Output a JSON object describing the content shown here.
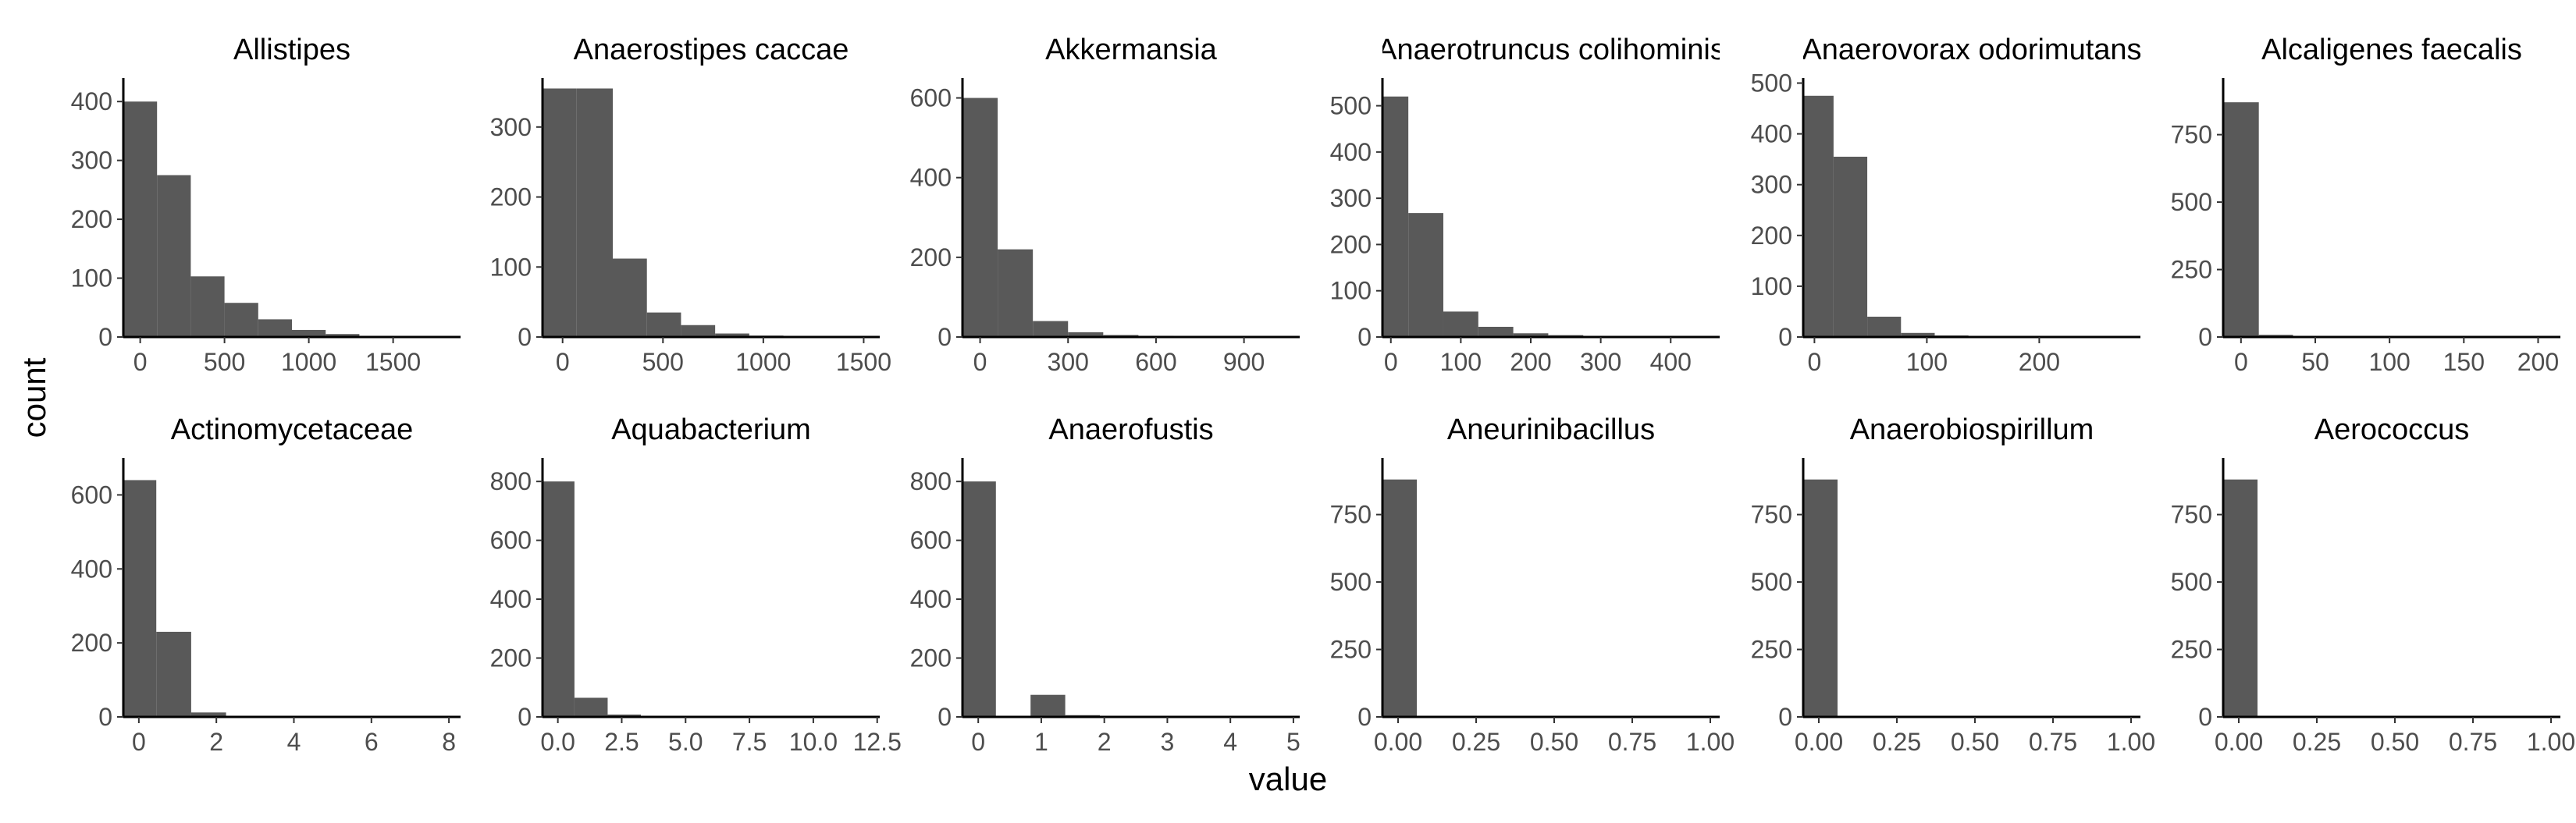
{
  "figure": {
    "xlabel": "value",
    "ylabel": "count",
    "bar_color": "#595959",
    "axis_color": "#000000",
    "tick_label_color": "#4d4d4d",
    "background": "#ffffff"
  },
  "chart_data": [
    {
      "type": "bar",
      "title": "Allistipes",
      "xlim": [
        -100,
        1900
      ],
      "ylim": [
        0,
        440
      ],
      "xticks": [
        {
          "v": 0,
          "label": "0"
        },
        {
          "v": 500,
          "label": "500"
        },
        {
          "v": 1000,
          "label": "1000"
        },
        {
          "v": 1500,
          "label": "1500"
        }
      ],
      "yticks": [
        {
          "v": 0,
          "label": "0"
        },
        {
          "v": 100,
          "label": "100"
        },
        {
          "v": 200,
          "label": "200"
        },
        {
          "v": 300,
          "label": "300"
        },
        {
          "v": 400,
          "label": "400"
        }
      ],
      "bins": [
        [
          -100,
          100,
          400
        ],
        [
          100,
          300,
          275
        ],
        [
          300,
          500,
          103
        ],
        [
          500,
          700,
          58
        ],
        [
          700,
          900,
          30
        ],
        [
          900,
          1100,
          12
        ],
        [
          1100,
          1300,
          5
        ],
        [
          1300,
          1500,
          2
        ],
        [
          1500,
          1700,
          1
        ],
        [
          1700,
          1900,
          1
        ]
      ]
    },
    {
      "type": "bar",
      "title": "Anaerostipes caccae",
      "xlim": [
        -100,
        1580
      ],
      "ylim": [
        0,
        370
      ],
      "xticks": [
        {
          "v": 0,
          "label": "0"
        },
        {
          "v": 500,
          "label": "500"
        },
        {
          "v": 1000,
          "label": "1000"
        },
        {
          "v": 1500,
          "label": "1500"
        }
      ],
      "yticks": [
        {
          "v": 0,
          "label": "0"
        },
        {
          "v": 100,
          "label": "100"
        },
        {
          "v": 200,
          "label": "200"
        },
        {
          "v": 300,
          "label": "300"
        }
      ],
      "bins": [
        [
          -100,
          70,
          355
        ],
        [
          70,
          250,
          355
        ],
        [
          250,
          420,
          112
        ],
        [
          420,
          590,
          35
        ],
        [
          590,
          760,
          17
        ],
        [
          760,
          930,
          5
        ],
        [
          930,
          1100,
          2
        ],
        [
          1100,
          1270,
          1
        ],
        [
          1270,
          1440,
          1
        ],
        [
          1440,
          1580,
          1
        ]
      ]
    },
    {
      "type": "bar",
      "title": "Akkermansia",
      "xlim": [
        -60,
        1090
      ],
      "ylim": [
        0,
        650
      ],
      "xticks": [
        {
          "v": 0,
          "label": "0"
        },
        {
          "v": 300,
          "label": "300"
        },
        {
          "v": 600,
          "label": "600"
        },
        {
          "v": 900,
          "label": "900"
        }
      ],
      "yticks": [
        {
          "v": 0,
          "label": "0"
        },
        {
          "v": 200,
          "label": "200"
        },
        {
          "v": 400,
          "label": "400"
        },
        {
          "v": 600,
          "label": "600"
        }
      ],
      "bins": [
        [
          -60,
          60,
          600
        ],
        [
          60,
          180,
          220
        ],
        [
          180,
          300,
          40
        ],
        [
          300,
          420,
          12
        ],
        [
          420,
          540,
          5
        ],
        [
          540,
          660,
          3
        ],
        [
          660,
          780,
          2
        ],
        [
          780,
          900,
          1
        ],
        [
          900,
          1020,
          1
        ],
        [
          1020,
          1090,
          1
        ]
      ]
    },
    {
      "type": "bar",
      "title": "Anaerotruncus colihominis",
      "xlim": [
        -12,
        470
      ],
      "ylim": [
        0,
        560
      ],
      "xticks": [
        {
          "v": 0,
          "label": "0"
        },
        {
          "v": 100,
          "label": "100"
        },
        {
          "v": 200,
          "label": "200"
        },
        {
          "v": 300,
          "label": "300"
        },
        {
          "v": 400,
          "label": "400"
        }
      ],
      "yticks": [
        {
          "v": 0,
          "label": "0"
        },
        {
          "v": 100,
          "label": "100"
        },
        {
          "v": 200,
          "label": "200"
        },
        {
          "v": 300,
          "label": "300"
        },
        {
          "v": 400,
          "label": "400"
        },
        {
          "v": 500,
          "label": "500"
        }
      ],
      "bins": [
        [
          -12,
          25,
          520
        ],
        [
          25,
          75,
          268
        ],
        [
          75,
          125,
          55
        ],
        [
          125,
          175,
          22
        ],
        [
          175,
          225,
          8
        ],
        [
          225,
          275,
          4
        ],
        [
          275,
          325,
          2
        ],
        [
          325,
          375,
          1
        ],
        [
          375,
          425,
          1
        ],
        [
          425,
          470,
          1
        ]
      ]
    },
    {
      "type": "bar",
      "title": "Anaerovorax odorimutans",
      "xlim": [
        -10,
        290
      ],
      "ylim": [
        0,
        510
      ],
      "xticks": [
        {
          "v": 0,
          "label": "0"
        },
        {
          "v": 100,
          "label": "100"
        },
        {
          "v": 200,
          "label": "200"
        }
      ],
      "yticks": [
        {
          "v": 0,
          "label": "0"
        },
        {
          "v": 100,
          "label": "100"
        },
        {
          "v": 200,
          "label": "200"
        },
        {
          "v": 300,
          "label": "300"
        },
        {
          "v": 400,
          "label": "400"
        },
        {
          "v": 500,
          "label": "500"
        }
      ],
      "bins": [
        [
          -10,
          17,
          475
        ],
        [
          17,
          47,
          355
        ],
        [
          47,
          77,
          40
        ],
        [
          77,
          107,
          8
        ],
        [
          107,
          137,
          3
        ],
        [
          137,
          167,
          2
        ],
        [
          167,
          197,
          1
        ],
        [
          197,
          227,
          1
        ],
        [
          227,
          257,
          1
        ],
        [
          257,
          290,
          1
        ]
      ]
    },
    {
      "type": "bar",
      "title": "Alcaligenes faecalis",
      "xlim": [
        -12,
        215
      ],
      "ylim": [
        0,
        960
      ],
      "xticks": [
        {
          "v": 0,
          "label": "0"
        },
        {
          "v": 50,
          "label": "50"
        },
        {
          "v": 100,
          "label": "100"
        },
        {
          "v": 150,
          "label": "150"
        },
        {
          "v": 200,
          "label": "200"
        }
      ],
      "yticks": [
        {
          "v": 0,
          "label": "0"
        },
        {
          "v": 250,
          "label": "250"
        },
        {
          "v": 500,
          "label": "500"
        },
        {
          "v": 750,
          "label": "750"
        }
      ],
      "bins": [
        [
          -12,
          12,
          870
        ],
        [
          12,
          35,
          8
        ],
        [
          35,
          58,
          3
        ],
        [
          58,
          81,
          1
        ],
        [
          81,
          104,
          1
        ],
        [
          104,
          127,
          1
        ],
        [
          127,
          150,
          1
        ],
        [
          150,
          173,
          1
        ],
        [
          173,
          196,
          1
        ],
        [
          196,
          215,
          1
        ]
      ]
    },
    {
      "type": "bar",
      "title": "Actinomycetaceae",
      "xlim": [
        -0.4,
        8.3
      ],
      "ylim": [
        0,
        700
      ],
      "xticks": [
        {
          "v": 0,
          "label": "0"
        },
        {
          "v": 2,
          "label": "2"
        },
        {
          "v": 4,
          "label": "4"
        },
        {
          "v": 6,
          "label": "6"
        },
        {
          "v": 8,
          "label": "8"
        }
      ],
      "yticks": [
        {
          "v": 0,
          "label": "0"
        },
        {
          "v": 200,
          "label": "200"
        },
        {
          "v": 400,
          "label": "400"
        },
        {
          "v": 600,
          "label": "600"
        }
      ],
      "bins": [
        [
          -0.4,
          0.45,
          640
        ],
        [
          0.45,
          1.35,
          230
        ],
        [
          1.35,
          2.25,
          12
        ],
        [
          2.25,
          3.15,
          3
        ],
        [
          3.15,
          4.05,
          1
        ],
        [
          4.05,
          4.95,
          1
        ],
        [
          4.95,
          5.85,
          1
        ],
        [
          5.85,
          6.75,
          1
        ],
        [
          6.75,
          7.65,
          1
        ],
        [
          7.65,
          8.3,
          1
        ]
      ]
    },
    {
      "type": "bar",
      "title": "Aquabacterium",
      "xlim": [
        -0.6,
        12.6
      ],
      "ylim": [
        0,
        880
      ],
      "xticks": [
        {
          "v": 0,
          "label": "0.0"
        },
        {
          "v": 2.5,
          "label": "2.5"
        },
        {
          "v": 5,
          "label": "5.0"
        },
        {
          "v": 7.5,
          "label": "7.5"
        },
        {
          "v": 10,
          "label": "10.0"
        },
        {
          "v": 12.5,
          "label": "12.5"
        }
      ],
      "yticks": [
        {
          "v": 0,
          "label": "0"
        },
        {
          "v": 200,
          "label": "200"
        },
        {
          "v": 400,
          "label": "400"
        },
        {
          "v": 600,
          "label": "600"
        },
        {
          "v": 800,
          "label": "800"
        }
      ],
      "bins": [
        [
          -0.6,
          0.65,
          800
        ],
        [
          0.65,
          1.95,
          65
        ],
        [
          1.95,
          3.25,
          8
        ],
        [
          3.25,
          4.55,
          3
        ],
        [
          4.55,
          5.85,
          2
        ],
        [
          5.85,
          7.15,
          1
        ],
        [
          7.15,
          8.45,
          1
        ],
        [
          8.45,
          9.75,
          1
        ],
        [
          9.75,
          11.05,
          1
        ],
        [
          11.05,
          12.6,
          1
        ]
      ]
    },
    {
      "type": "bar",
      "title": "Anaerofustis",
      "xlim": [
        -0.25,
        5.1
      ],
      "ylim": [
        0,
        880
      ],
      "xticks": [
        {
          "v": 0,
          "label": "0"
        },
        {
          "v": 1,
          "label": "1"
        },
        {
          "v": 2,
          "label": "2"
        },
        {
          "v": 3,
          "label": "3"
        },
        {
          "v": 4,
          "label": "4"
        },
        {
          "v": 5,
          "label": "5"
        }
      ],
      "yticks": [
        {
          "v": 0,
          "label": "0"
        },
        {
          "v": 200,
          "label": "200"
        },
        {
          "v": 400,
          "label": "400"
        },
        {
          "v": 600,
          "label": "600"
        },
        {
          "v": 800,
          "label": "800"
        }
      ],
      "bins": [
        [
          -0.25,
          0.28,
          800
        ],
        [
          0.28,
          0.83,
          0
        ],
        [
          0.83,
          1.38,
          75
        ],
        [
          1.38,
          1.93,
          6
        ],
        [
          1.93,
          2.48,
          3
        ],
        [
          2.48,
          3.03,
          2
        ],
        [
          3.03,
          3.58,
          1
        ],
        [
          3.58,
          4.13,
          1
        ],
        [
          4.13,
          4.68,
          1
        ],
        [
          4.68,
          5.1,
          1
        ]
      ]
    },
    {
      "type": "bar",
      "title": "Aneurinibacillus",
      "xlim": [
        -0.05,
        1.03
      ],
      "ylim": [
        0,
        960
      ],
      "xticks": [
        {
          "v": 0,
          "label": "0.00"
        },
        {
          "v": 0.25,
          "label": "0.25"
        },
        {
          "v": 0.5,
          "label": "0.50"
        },
        {
          "v": 0.75,
          "label": "0.75"
        },
        {
          "v": 1,
          "label": "1.00"
        }
      ],
      "yticks": [
        {
          "v": 0,
          "label": "0"
        },
        {
          "v": 250,
          "label": "250"
        },
        {
          "v": 500,
          "label": "500"
        },
        {
          "v": 750,
          "label": "750"
        }
      ],
      "bins": [
        [
          -0.05,
          0.06,
          880
        ],
        [
          0.06,
          0.17,
          0
        ],
        [
          0.17,
          0.28,
          0
        ],
        [
          0.28,
          0.39,
          0
        ],
        [
          0.39,
          0.5,
          0
        ],
        [
          0.5,
          0.61,
          0
        ],
        [
          0.61,
          0.72,
          0
        ],
        [
          0.72,
          0.83,
          0
        ],
        [
          0.83,
          0.94,
          0
        ],
        [
          0.94,
          1.03,
          2
        ]
      ]
    },
    {
      "type": "bar",
      "title": "Anaerobiospirillum",
      "xlim": [
        -0.05,
        1.03
      ],
      "ylim": [
        0,
        960
      ],
      "xticks": [
        {
          "v": 0,
          "label": "0.00"
        },
        {
          "v": 0.25,
          "label": "0.25"
        },
        {
          "v": 0.5,
          "label": "0.50"
        },
        {
          "v": 0.75,
          "label": "0.75"
        },
        {
          "v": 1,
          "label": "1.00"
        }
      ],
      "yticks": [
        {
          "v": 0,
          "label": "0"
        },
        {
          "v": 250,
          "label": "250"
        },
        {
          "v": 500,
          "label": "500"
        },
        {
          "v": 750,
          "label": "750"
        }
      ],
      "bins": [
        [
          -0.05,
          0.06,
          880
        ],
        [
          0.06,
          0.17,
          0
        ],
        [
          0.17,
          0.28,
          0
        ],
        [
          0.28,
          0.39,
          0
        ],
        [
          0.39,
          0.5,
          0
        ],
        [
          0.5,
          0.61,
          0
        ],
        [
          0.61,
          0.72,
          0
        ],
        [
          0.72,
          0.83,
          0
        ],
        [
          0.83,
          0.94,
          0
        ],
        [
          0.94,
          1.03,
          1
        ]
      ]
    },
    {
      "type": "bar",
      "title": "Aerococcus",
      "xlim": [
        -0.05,
        1.03
      ],
      "ylim": [
        0,
        960
      ],
      "xticks": [
        {
          "v": 0,
          "label": "0.00"
        },
        {
          "v": 0.25,
          "label": "0.25"
        },
        {
          "v": 0.5,
          "label": "0.50"
        },
        {
          "v": 0.75,
          "label": "0.75"
        },
        {
          "v": 1,
          "label": "1.00"
        }
      ],
      "yticks": [
        {
          "v": 0,
          "label": "0"
        },
        {
          "v": 250,
          "label": "250"
        },
        {
          "v": 500,
          "label": "500"
        },
        {
          "v": 750,
          "label": "750"
        }
      ],
      "bins": [
        [
          -0.05,
          0.06,
          880
        ],
        [
          0.06,
          0.17,
          0
        ],
        [
          0.17,
          0.28,
          0
        ],
        [
          0.28,
          0.39,
          0
        ],
        [
          0.39,
          0.5,
          0
        ],
        [
          0.5,
          0.61,
          0
        ],
        [
          0.61,
          0.72,
          0
        ],
        [
          0.72,
          0.83,
          0
        ],
        [
          0.83,
          0.94,
          0
        ],
        [
          0.94,
          1.03,
          1
        ]
      ]
    }
  ]
}
